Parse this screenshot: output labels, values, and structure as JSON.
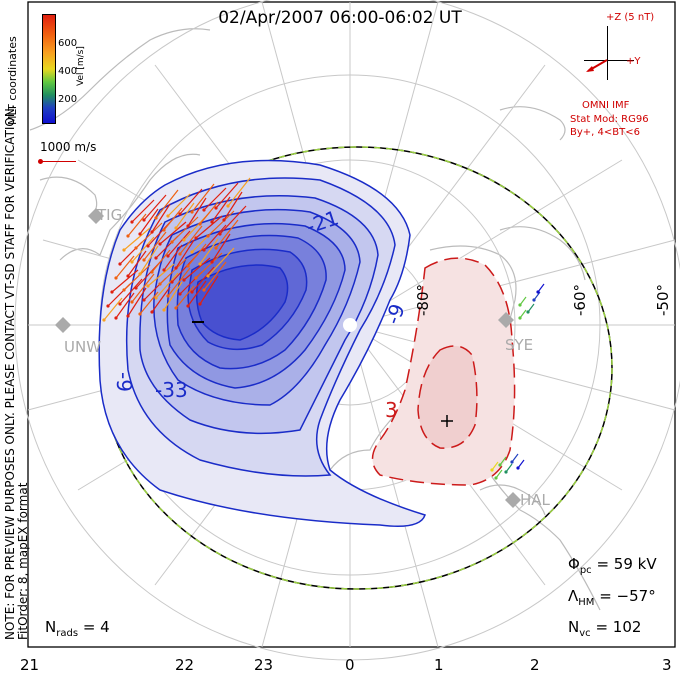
{
  "title": "02/Apr/2007 06:00-06:02 UT",
  "side_note": [
    "NOTE: FOR PREVIEW PURPOSES ONLY. PLEASE CONTACT VT-SD STAFF FOR VERIFICATION.",
    "FitOrder: 8, mapEX format"
  ],
  "coordinate_label": "MLT coordinates",
  "color_scale": {
    "label": "Vel [m/s]",
    "ticks": [
      "600",
      "400",
      "200"
    ],
    "colors": [
      "#e02010",
      "#f06010",
      "#f8a020",
      "#e8d820",
      "#60c840",
      "#209060",
      "#2040c0",
      "#1010d0"
    ]
  },
  "vector_scale_label": "1000 m/s",
  "imf": {
    "bz_label": "+Z (5 nT)",
    "by_label": "+Y",
    "source": "OMNI IMF",
    "stat_model": "Stat Mod: RG96",
    "condition": "By+, 4<BT<6"
  },
  "stations": [
    "TIG",
    "UNW",
    "SYE",
    "HAL"
  ],
  "latitude_labels": [
    "-80°",
    "-60°",
    "-50°"
  ],
  "contour_labels": [
    "-21",
    "-9",
    "-33",
    "-9",
    "3"
  ],
  "stats": {
    "phi_symbol": "Φ",
    "phi_sub": "pc",
    "phi_value": "= 59 kV",
    "lambda_symbol": "Λ",
    "lambda_sub": "HM",
    "lambda_value": "= −57°",
    "nvc_symbol": "N",
    "nvc_sub": "vc",
    "nvc_value": "= 102",
    "nrads_symbol": "N",
    "nrads_sub": "rads",
    "nrads_value": "= 4"
  },
  "x_axis_ticks": [
    "21",
    "22",
    "23",
    "0",
    "1",
    "2",
    "3"
  ],
  "colors": {
    "negative": "#1a2cc8",
    "positive": "#cc1a1a",
    "fill_neg": "#3040d8",
    "fill_pos": "#e8b0b0"
  }
}
